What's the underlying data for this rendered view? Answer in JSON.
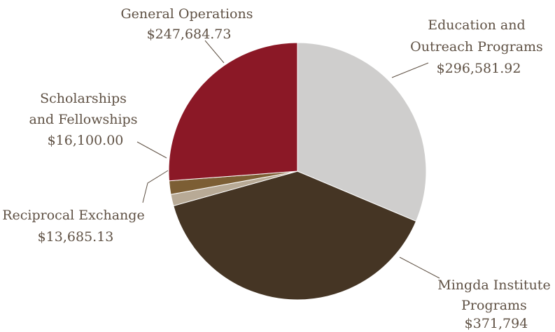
{
  "chart_data": {
    "type": "pie",
    "title": "",
    "slices": [
      {
        "label_lines": [
          "Education and",
          "Outreach Programs"
        ],
        "amount_label": "$296,581.92",
        "value": 296581.92,
        "color": "#cfcecd"
      },
      {
        "label_lines": [
          "Mingda Institute",
          "Programs"
        ],
        "amount_label": "$371,794",
        "value": 371794,
        "color": "#453524"
      },
      {
        "label_lines": [
          "Reciprocal Exchange"
        ],
        "amount_label": "$13,685.13",
        "value": 13685.13,
        "color": "#b8aa96"
      },
      {
        "label_lines": [
          "Scholarships",
          "and Fellowships"
        ],
        "amount_label": "$16,100.00",
        "value": 16100.0,
        "color": "#7c5e34"
      },
      {
        "label_lines": [
          "General Operations"
        ],
        "amount_label": "$247,684.73",
        "value": 247684.73,
        "color": "#8b1826"
      }
    ],
    "start_angle_deg": 0,
    "direction": "clockwise",
    "legend": "none",
    "label_style": "outside labels with leader lines"
  }
}
